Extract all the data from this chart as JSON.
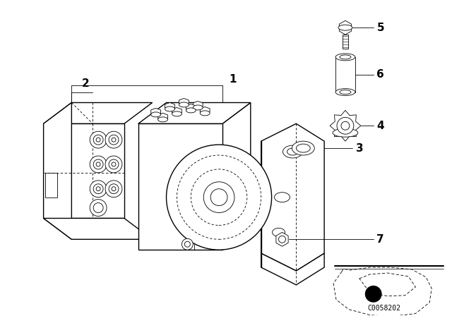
{
  "background_color": "#ffffff",
  "line_color": "#000000",
  "fig_width": 6.4,
  "fig_height": 4.48,
  "dpi": 100,
  "diagram_code_text": "C0058202"
}
